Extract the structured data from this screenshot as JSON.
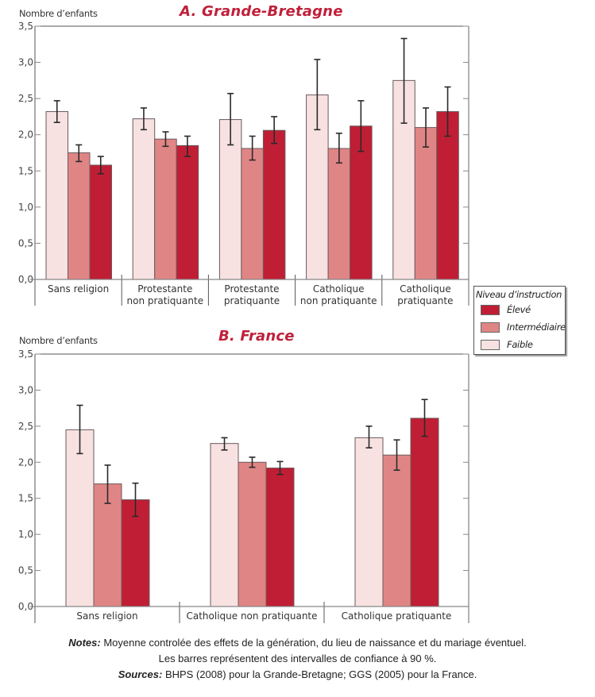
{
  "colors": {
    "eleve": "#c01e35",
    "intermediaire": "#e08585",
    "faible": "#f7e1e1",
    "title": "#c0203a"
  },
  "legend": {
    "title": "Niveau d’instruction",
    "items": [
      {
        "key": "eleve",
        "label": "Élevé"
      },
      {
        "key": "intermediaire",
        "label": "Intermédiaire"
      },
      {
        "key": "faible",
        "label": "Faible"
      }
    ]
  },
  "chart_data": [
    {
      "type": "bar",
      "title": "A. Grande-Bretagne",
      "ylabel": "Nombre d’enfants",
      "xlabel": "",
      "ylim": [
        0,
        3.5
      ],
      "yticks": [
        "0,0",
        "0,5",
        "1,0",
        "1,5",
        "2,0",
        "2,5",
        "3,0",
        "3,5"
      ],
      "grid": false,
      "legend_position": "right",
      "categories": [
        [
          "Sans religion"
        ],
        [
          "Protestante",
          "non pratiquante"
        ],
        [
          "Protestante",
          "pratiquante"
        ],
        [
          "Catholique",
          "non pratiquante"
        ],
        [
          "Catholique",
          "pratiquante"
        ]
      ],
      "series": [
        {
          "name": "Faible",
          "key": "faible",
          "values": [
            2.32,
            2.22,
            2.21,
            2.55,
            2.75
          ],
          "ci_low": [
            2.17,
            2.07,
            1.86,
            2.07,
            2.16
          ],
          "ci_high": [
            2.47,
            2.37,
            2.57,
            3.04,
            3.33
          ]
        },
        {
          "name": "Intermédiaire",
          "key": "intermediaire",
          "values": [
            1.75,
            1.94,
            1.81,
            1.81,
            2.1
          ],
          "ci_low": [
            1.63,
            1.84,
            1.65,
            1.61,
            1.83
          ],
          "ci_high": [
            1.86,
            2.04,
            1.98,
            2.02,
            2.37
          ]
        },
        {
          "name": "Élevé",
          "key": "eleve",
          "values": [
            1.58,
            1.85,
            2.06,
            2.12,
            2.32
          ],
          "ci_low": [
            1.46,
            1.7,
            1.88,
            1.77,
            1.98
          ],
          "ci_high": [
            1.7,
            1.98,
            2.25,
            2.47,
            2.66
          ]
        }
      ]
    },
    {
      "type": "bar",
      "title": "B. France",
      "ylabel": "Nombre d’enfants",
      "xlabel": "",
      "ylim": [
        0,
        3.5
      ],
      "yticks": [
        "0,0",
        "0,5",
        "1,0",
        "1,5",
        "2,0",
        "2,5",
        "3,0",
        "3,5"
      ],
      "grid": false,
      "categories": [
        [
          "Sans religion"
        ],
        [
          "Catholique non pratiquante"
        ],
        [
          "Catholique pratiquante"
        ]
      ],
      "series": [
        {
          "name": "Faible",
          "key": "faible",
          "values": [
            2.45,
            2.26,
            2.34
          ],
          "ci_low": [
            2.12,
            2.17,
            2.2
          ],
          "ci_high": [
            2.79,
            2.34,
            2.5
          ]
        },
        {
          "name": "Intermédiaire",
          "key": "intermediaire",
          "values": [
            1.7,
            2.0,
            2.1
          ],
          "ci_low": [
            1.43,
            1.93,
            1.89
          ],
          "ci_high": [
            1.96,
            2.07,
            2.31
          ]
        },
        {
          "name": "Élevé",
          "key": "eleve",
          "values": [
            1.48,
            1.92,
            2.61
          ],
          "ci_low": [
            1.25,
            1.83,
            2.36
          ],
          "ci_high": [
            1.71,
            2.01,
            2.87
          ]
        }
      ]
    }
  ],
  "notes": {
    "notes_label": "Notes:",
    "notes_text": " Moyenne controlée des effets de la génération, du lieu de naissance et du mariage éventuel.",
    "notes_line2": "Les barres représentent des intervalles de confiance à 90 %.",
    "sources_label": "Sources:",
    "sources_text": " BHPS (2008) pour la Grande-Bretagne; GGS (2005) pour la France."
  }
}
